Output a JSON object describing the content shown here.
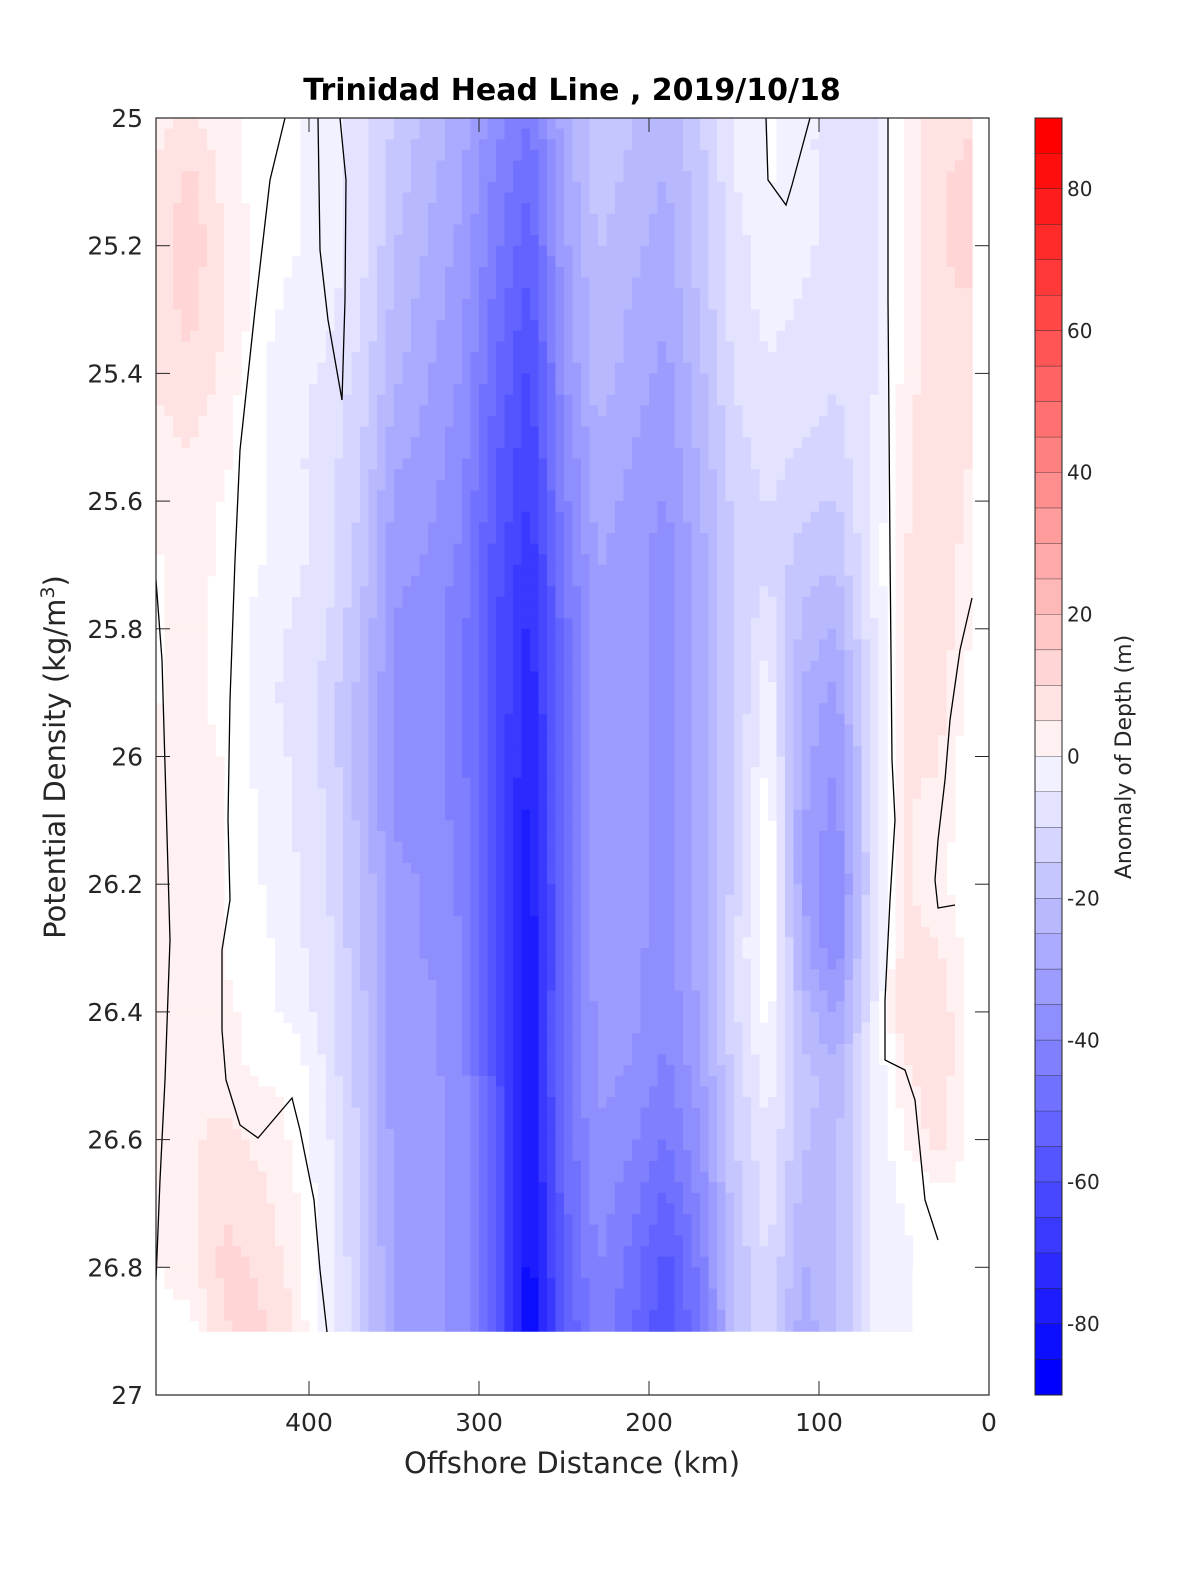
{
  "chart_data": {
    "type": "contour",
    "title": "Trinidad Head Line , 2019/10/18",
    "xlabel": "Offshore Distance (km)",
    "ylabel_main": "Potential Density (kg/m",
    "ylabel_sup": "3",
    "ylabel_close": ")",
    "colorbar_label": "Anomaly of Depth (m)",
    "x_axis": {
      "range": [
        490,
        0
      ],
      "reversed": true,
      "ticks": [
        400,
        300,
        200,
        100,
        0
      ]
    },
    "y_axis": {
      "range": [
        25,
        27
      ],
      "reversed": true,
      "tick_labels": [
        "25",
        "25.2",
        "25.4",
        "25.6",
        "25.8",
        "26",
        "26.2",
        "26.4",
        "26.6",
        "26.8",
        "27"
      ]
    },
    "colorbar": {
      "range": [
        -90,
        90
      ],
      "step": 5,
      "tick_values": [
        80,
        60,
        40,
        20,
        0,
        -20,
        -40,
        -60,
        -80
      ],
      "colormap": "blue-white-red",
      "negative_color": "#0000ff",
      "zero_color": "#ffffff",
      "positive_color": "#ff0000"
    },
    "x": [
      490,
      470,
      450,
      430,
      410,
      390,
      370,
      350,
      330,
      310,
      290,
      270,
      250,
      230,
      210,
      190,
      170,
      150,
      130,
      110,
      90,
      70,
      50,
      30,
      10
    ],
    "y": [
      25.0,
      25.1,
      25.2,
      25.3,
      25.4,
      25.5,
      25.6,
      25.7,
      25.8,
      25.9,
      26.0,
      26.1,
      26.2,
      26.3,
      26.4,
      26.5,
      26.6,
      26.7,
      26.8,
      26.9
    ],
    "z_rows": [
      [
        6,
        8,
        5,
        0,
        -2,
        -4,
        -10,
        -18,
        -24,
        -30,
        -40,
        -48,
        -30,
        -20,
        -22,
        -26,
        -18,
        -8,
        -2,
        -6,
        -10,
        -12,
        4,
        10,
        12
      ],
      [
        8,
        14,
        6,
        0,
        -2,
        -4,
        -10,
        -20,
        -26,
        -32,
        -44,
        -52,
        -32,
        -20,
        -24,
        -28,
        -20,
        -8,
        -2,
        -6,
        -10,
        -12,
        4,
        12,
        14
      ],
      [
        10,
        16,
        8,
        0,
        -2,
        -4,
        -10,
        -22,
        -28,
        -34,
        -46,
        -56,
        -34,
        -22,
        -26,
        -30,
        -20,
        -10,
        -4,
        -6,
        -10,
        -12,
        4,
        12,
        14
      ],
      [
        10,
        14,
        8,
        0,
        -4,
        -6,
        -12,
        -24,
        -30,
        -36,
        -50,
        -60,
        -36,
        -24,
        -28,
        -32,
        -22,
        -10,
        -6,
        -8,
        -12,
        -12,
        4,
        12,
        12
      ],
      [
        8,
        12,
        6,
        -2,
        -6,
        -8,
        -14,
        -26,
        -32,
        -38,
        -52,
        -64,
        -38,
        -24,
        -30,
        -34,
        -24,
        -12,
        -8,
        -10,
        -12,
        -10,
        4,
        12,
        10
      ],
      [
        6,
        8,
        4,
        -2,
        -6,
        -10,
        -16,
        -30,
        -34,
        -40,
        -56,
        -66,
        -42,
        -28,
        -32,
        -36,
        -26,
        -14,
        -10,
        -12,
        -14,
        -8,
        6,
        12,
        8
      ],
      [
        4,
        6,
        2,
        -2,
        -6,
        -10,
        -18,
        -34,
        -36,
        -42,
        -58,
        -68,
        -44,
        -30,
        -34,
        -38,
        -28,
        -16,
        -12,
        -16,
        -18,
        -8,
        6,
        12,
        6
      ],
      [
        2,
        4,
        2,
        -2,
        -6,
        -10,
        -20,
        -36,
        -38,
        -44,
        -60,
        -72,
        -48,
        -32,
        -36,
        -40,
        -30,
        -18,
        -14,
        -20,
        -22,
        -8,
        8,
        12,
        4
      ],
      [
        2,
        4,
        0,
        -4,
        -8,
        -12,
        -22,
        -38,
        -40,
        -46,
        -62,
        -74,
        -50,
        -34,
        -36,
        -40,
        -30,
        -18,
        -8,
        -24,
        -28,
        -10,
        8,
        12,
        2
      ],
      [
        2,
        4,
        0,
        -4,
        -10,
        -14,
        -24,
        -38,
        -40,
        -46,
        -62,
        -76,
        -52,
        -34,
        -36,
        -40,
        -30,
        -18,
        -4,
        -28,
        -34,
        -12,
        8,
        10,
        0
      ],
      [
        4,
        6,
        2,
        -4,
        -8,
        -14,
        -24,
        -38,
        -40,
        -46,
        -62,
        -78,
        -52,
        -34,
        -36,
        -40,
        -30,
        -18,
        -2,
        -30,
        -38,
        -14,
        8,
        8,
        -2
      ],
      [
        4,
        6,
        2,
        -2,
        -8,
        -12,
        -24,
        -38,
        -40,
        -44,
        -62,
        -80,
        -52,
        -34,
        -36,
        -40,
        -30,
        -16,
        2,
        -32,
        -40,
        -14,
        8,
        6,
        -2
      ],
      [
        4,
        6,
        2,
        -2,
        -6,
        -12,
        -22,
        -36,
        -38,
        -44,
        -60,
        -80,
        -52,
        -34,
        -36,
        -40,
        -30,
        -16,
        4,
        -32,
        -44,
        -14,
        8,
        4,
        -2
      ],
      [
        4,
        6,
        2,
        0,
        -6,
        -10,
        -22,
        -36,
        -38,
        -42,
        -60,
        -82,
        -52,
        -34,
        -36,
        -40,
        -30,
        -14,
        4,
        -30,
        -42,
        -12,
        10,
        8,
        0
      ],
      [
        2,
        6,
        4,
        0,
        -4,
        -10,
        -20,
        -36,
        -36,
        -42,
        -60,
        -82,
        -50,
        -36,
        -36,
        -42,
        -32,
        -14,
        0,
        -24,
        -34,
        -10,
        12,
        12,
        0
      ],
      [
        2,
        6,
        4,
        2,
        2,
        -8,
        -20,
        -36,
        -36,
        -40,
        -60,
        -82,
        -50,
        -36,
        -38,
        -44,
        -34,
        -16,
        -4,
        -20,
        -26,
        -8,
        6,
        12,
        0
      ],
      [
        2,
        6,
        10,
        6,
        2,
        -6,
        -18,
        -34,
        -34,
        -40,
        -58,
        -84,
        -52,
        -38,
        -42,
        -48,
        -38,
        -18,
        -8,
        -22,
        -24,
        -8,
        2,
        10,
        0
      ],
      [
        2,
        6,
        12,
        10,
        4,
        -6,
        -18,
        -34,
        -34,
        -40,
        -58,
        -84,
        -54,
        -40,
        -46,
        -54,
        -42,
        -20,
        -10,
        -24,
        -24,
        -8,
        -2,
        0,
        0
      ],
      [
        2,
        6,
        14,
        12,
        6,
        -6,
        -16,
        -34,
        -34,
        -40,
        -58,
        -86,
        -56,
        -42,
        -50,
        -60,
        -46,
        -22,
        -12,
        -28,
        -24,
        -8,
        -4,
        0,
        0
      ],
      [
        0,
        0,
        12,
        14,
        8,
        -6,
        -16,
        -34,
        -34,
        -40,
        -58,
        -88,
        -58,
        -44,
        -52,
        -62,
        -48,
        -24,
        -12,
        -30,
        -24,
        -8,
        -4,
        0,
        0
      ]
    ],
    "z_range": [
      -88,
      16
    ],
    "zero_contour_lines": 6
  }
}
